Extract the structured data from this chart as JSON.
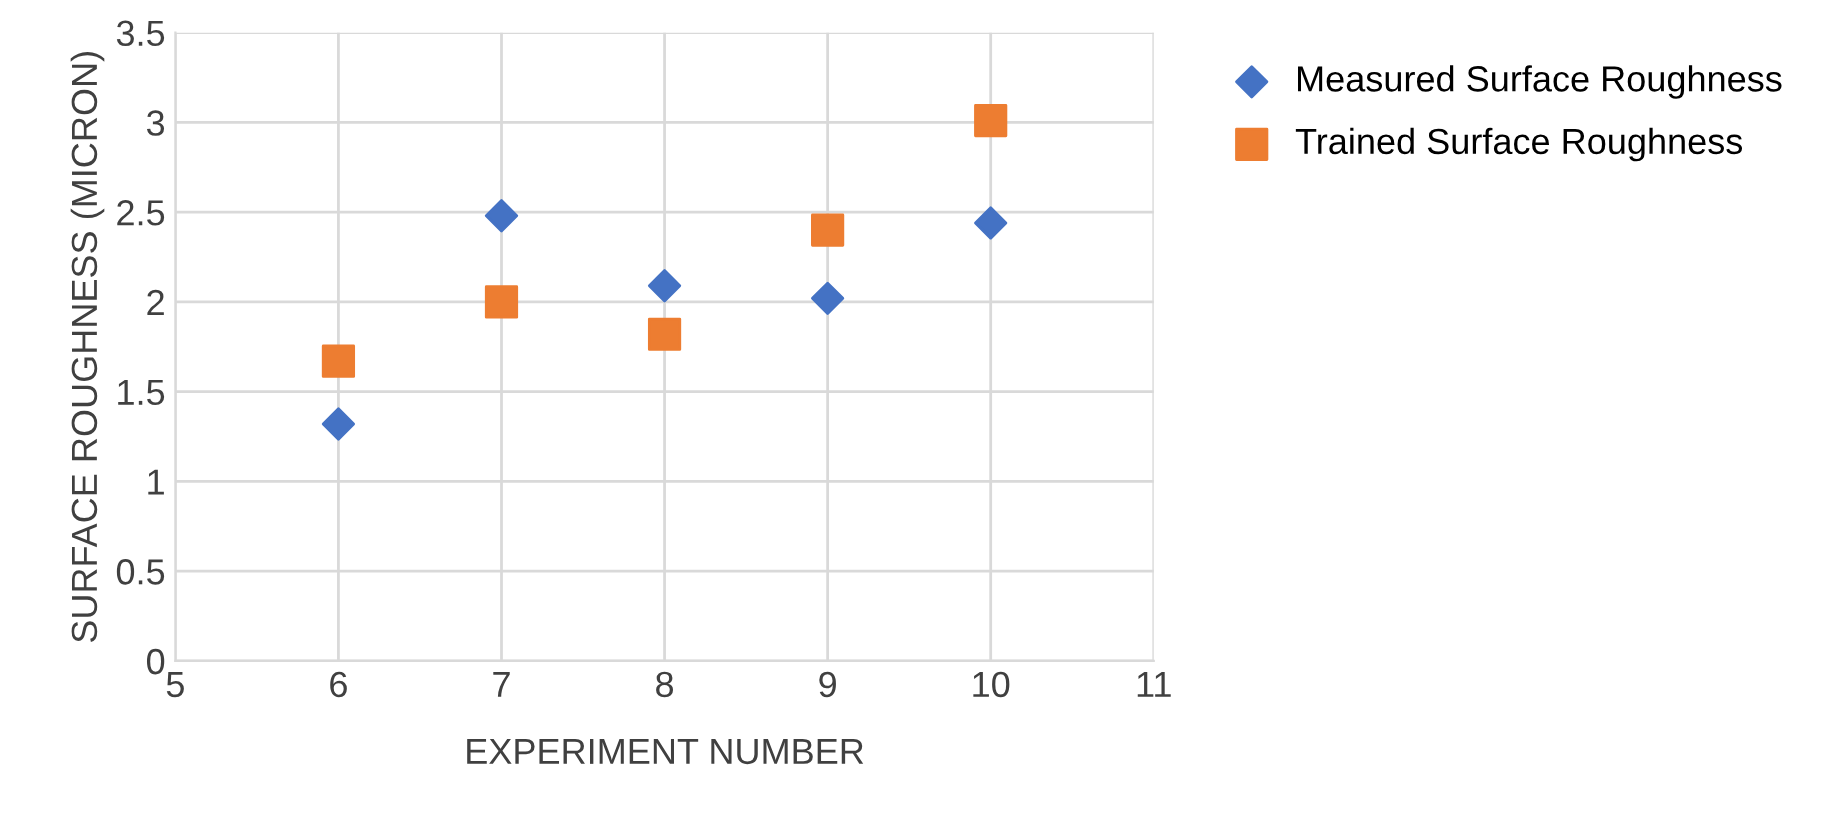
{
  "chart_data": {
    "type": "scatter",
    "xlabel": "EXPERIMENT NUMBER",
    "ylabel": "SURFACE ROUGHNESS (MICRON)",
    "x": [
      6,
      7,
      8,
      9,
      10
    ],
    "series": [
      {
        "name": "Measured Surface Roughness",
        "color": "#4472c4",
        "marker": "diamond",
        "values": [
          1.32,
          2.48,
          2.09,
          2.02,
          2.44
        ]
      },
      {
        "name": "Trained Surface Roughness",
        "color": "#ed7d31",
        "marker": "square",
        "values": [
          1.67,
          2.0,
          1.82,
          2.4,
          3.01
        ]
      }
    ],
    "xlim": [
      5,
      11
    ],
    "xticks": [
      5,
      6,
      7,
      8,
      9,
      10,
      11
    ],
    "ylim": [
      0,
      3.5
    ],
    "yticks": [
      0,
      0.5,
      1,
      1.5,
      2,
      2.5,
      3,
      3.5
    ],
    "grid": true,
    "legend": "right"
  }
}
